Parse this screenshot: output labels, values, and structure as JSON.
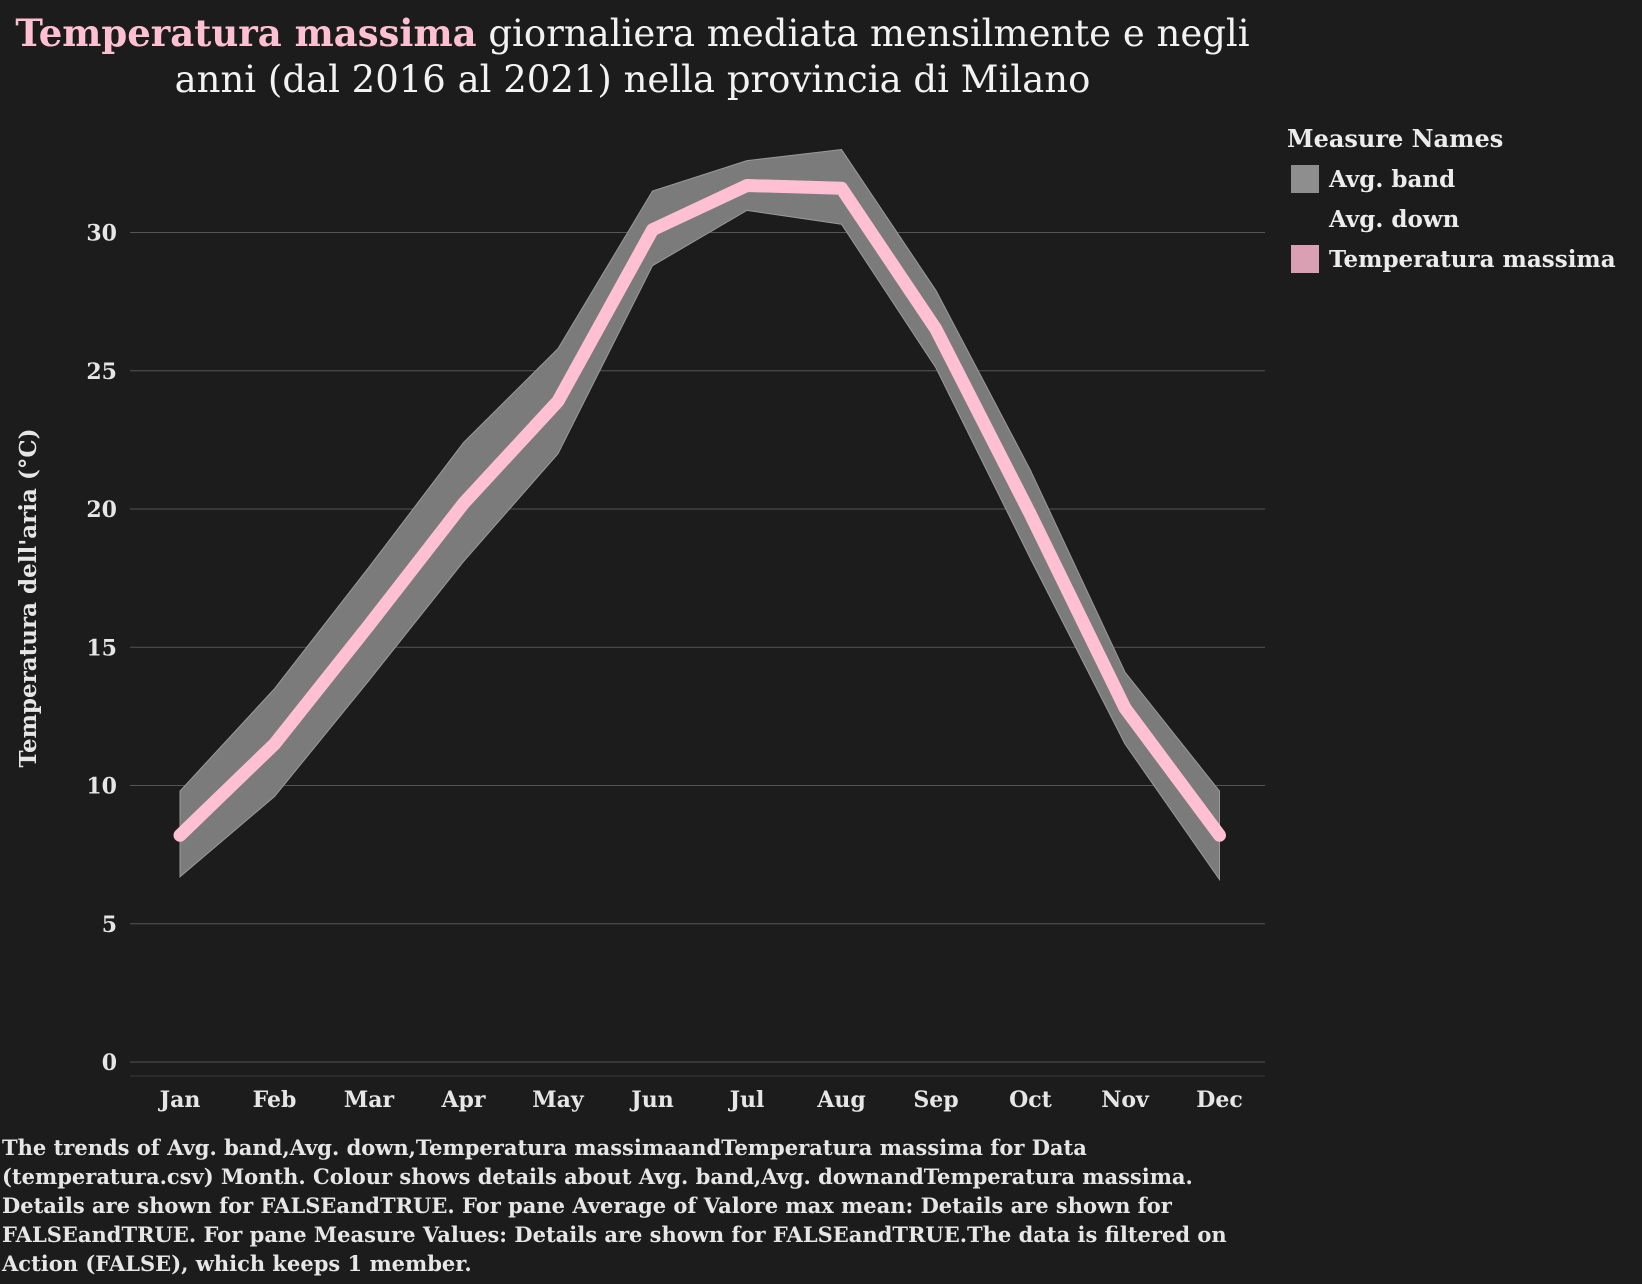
{
  "title": {
    "highlight": "Temperatura massima",
    "rest": " giornaliera mediata mensilmente e negli anni (dal 2016 al 2021) nella provincia di Milano"
  },
  "legend": {
    "title": "Measure Names",
    "items": [
      {
        "label": "Avg. band",
        "color": "#8e8e8e"
      },
      {
        "label": "Avg. down",
        "color": "#1c1c1c"
      },
      {
        "label": "Temperatura massima",
        "color": "#d99fb3"
      }
    ]
  },
  "caption": "The trends of Avg. band,Avg. down,Temperatura massimaandTemperatura massima for Data (temperatura.csv) Month. Colour shows details about Avg. band,Avg. downandTemperatura massima. Details are shown for FALSEandTRUE. For pane Average of Valore max mean: Details are shown for FALSEandTRUE. For pane Measure Values: Details are shown for FALSEandTRUE.The data is filtered on Action (FALSE), which keeps 1 member.",
  "colors": {
    "background": "#1c1c1c",
    "band": "#7b7b7b",
    "line": "#ffc0d3",
    "grid": "#555555"
  },
  "chart_data": {
    "type": "line",
    "categories": [
      "Jan",
      "Feb",
      "Mar",
      "Apr",
      "May",
      "Jun",
      "Jul",
      "Aug",
      "Sep",
      "Oct",
      "Nov",
      "Dec"
    ],
    "ylabel": "Temperatura dell'aria (°C)",
    "ylim": [
      0,
      32
    ],
    "yticks": [
      0,
      5,
      10,
      15,
      20,
      25,
      30
    ],
    "grid": true,
    "legend_position": "top-right",
    "series": [
      {
        "name": "Temperatura massima",
        "values": [
          8.2,
          11.5,
          15.8,
          20.2,
          23.9,
          30.1,
          31.7,
          31.6,
          26.5,
          19.8,
          12.8,
          8.2
        ]
      },
      {
        "name": "Avg. band",
        "upper": [
          9.8,
          13.5,
          17.9,
          22.4,
          25.8,
          31.5,
          32.6,
          33.0,
          27.9,
          21.4,
          14.1,
          9.8
        ],
        "lower": [
          6.7,
          9.6,
          13.8,
          18.1,
          22.0,
          28.8,
          30.8,
          30.3,
          25.1,
          18.2,
          11.5,
          6.6
        ]
      }
    ]
  }
}
